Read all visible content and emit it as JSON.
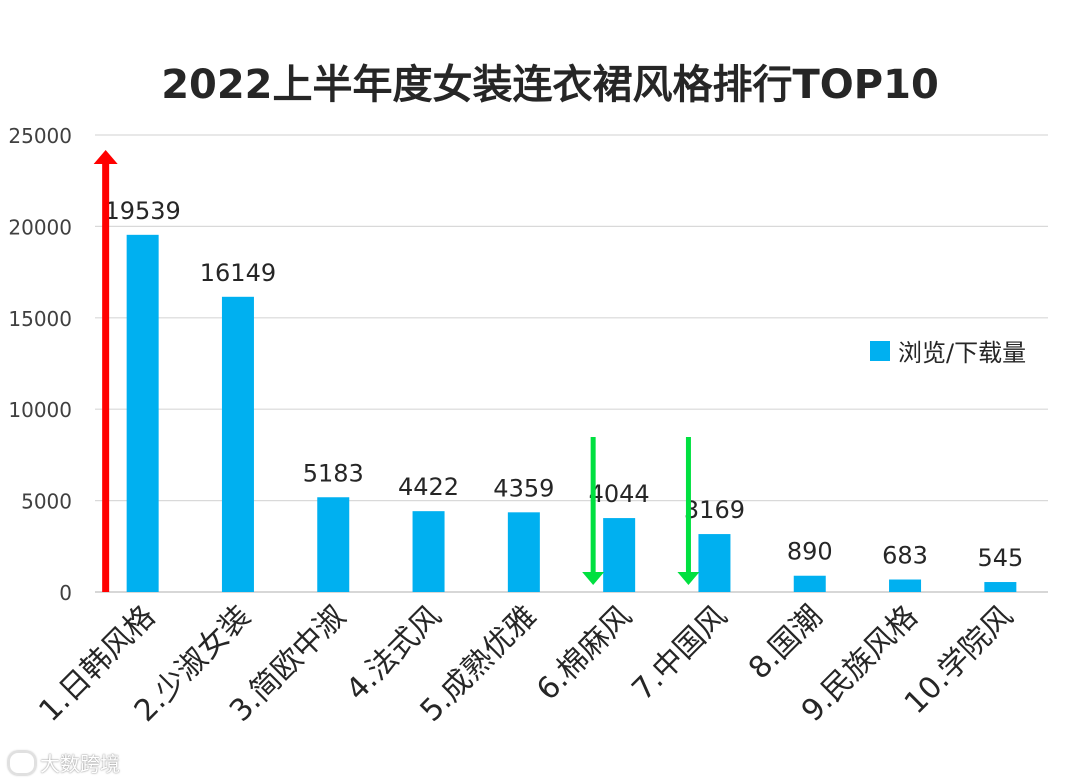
{
  "chart_data": {
    "type": "bar",
    "title": "2022上半年度女装连衣裙风格排行TOP10",
    "categories": [
      "1.日韩风格",
      "2.少淑女装",
      "3.简欧中淑",
      "4.法式风",
      "5.成熟优雅",
      "6.棉麻风",
      "7.中国风",
      "8.国潮",
      "9.民族风格",
      "10.学院风"
    ],
    "series": [
      {
        "name": "浏览/下载量",
        "values": [
          19539,
          16149,
          5183,
          4422,
          4359,
          4044,
          3169,
          890,
          683,
          545
        ]
      }
    ],
    "ylim": [
      0,
      25000
    ],
    "yticks": [
      0,
      5000,
      10000,
      15000,
      20000,
      25000
    ],
    "grid": true,
    "legend_position": "right",
    "annotations": [
      {
        "type": "arrow-up",
        "category_index": 0,
        "color": "#ff0000"
      },
      {
        "type": "arrow-down",
        "category_index": 5,
        "color": "#00e040"
      },
      {
        "type": "arrow-down",
        "category_index": 6,
        "color": "#00e040"
      }
    ]
  },
  "colors": {
    "bar": "#00b0f0",
    "grid": "#d9d9d9",
    "text": "#262626"
  },
  "watermark": {
    "text": "大数跨境",
    "icon": "logo-icon"
  }
}
